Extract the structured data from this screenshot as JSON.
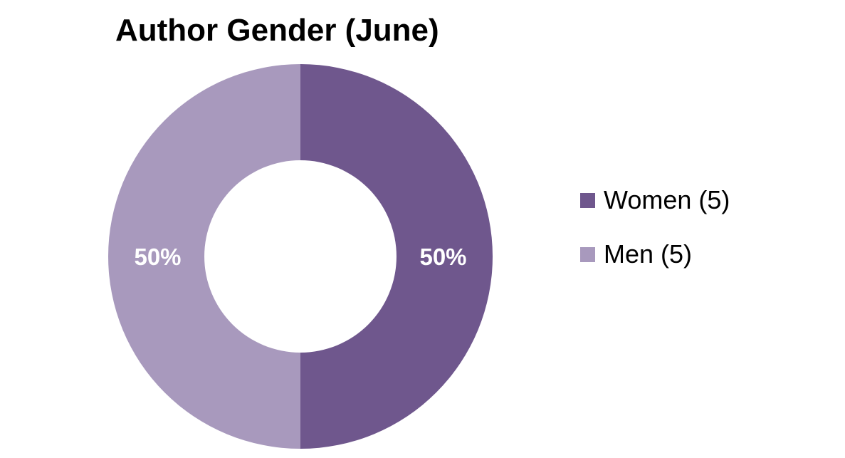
{
  "chart_data": {
    "type": "pie",
    "variant": "donut",
    "title": "Author Gender (June)",
    "slices": [
      {
        "label": "Women (5)",
        "value": 5,
        "percent_label": "50%",
        "color": "#6f578d"
      },
      {
        "label": "Men (5)",
        "value": 5,
        "percent_label": "50%",
        "color": "#a899bd"
      }
    ],
    "legend_position": "right",
    "data_label_color": "#ffffff"
  }
}
